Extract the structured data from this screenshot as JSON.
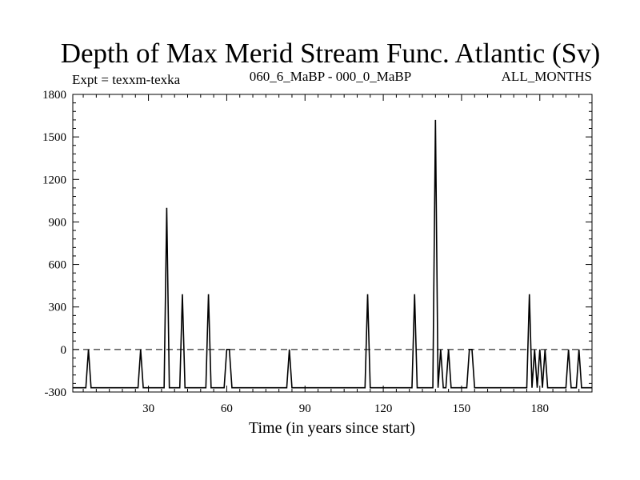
{
  "chart_data": {
    "type": "line",
    "title": "Depth of Max Merid Stream Func. Atlantic (Sv)",
    "subtitle_left": "Expt = texxm-texka",
    "subtitle_center": "060_6_MaBP - 000_0_MaBP",
    "subtitle_right": "ALL_MONTHS",
    "xlabel": "Time (in years since start)",
    "ylabel": "",
    "xlim": [
      1,
      200
    ],
    "ylim": [
      -300,
      1800
    ],
    "xticks": [
      30,
      60,
      90,
      120,
      150,
      180
    ],
    "yticks": [
      -300,
      0,
      300,
      600,
      900,
      1200,
      1500,
      1800
    ],
    "reference_line": 0,
    "series": [
      {
        "name": "texxm-texka",
        "x": [
          1,
          6,
          7,
          8,
          26,
          27,
          28,
          36,
          37,
          38,
          42,
          43,
          44,
          52,
          53,
          54,
          59,
          60,
          61,
          62,
          83,
          84,
          85,
          113,
          114,
          115,
          131,
          132,
          133,
          139,
          140,
          141,
          142,
          143,
          144,
          145,
          146,
          147,
          152,
          153,
          154,
          155,
          175,
          176,
          177,
          178,
          179,
          180,
          181,
          182,
          183,
          184,
          190,
          191,
          192,
          194,
          195,
          196,
          200
        ],
        "y": [
          -270,
          -270,
          0,
          -270,
          -270,
          0,
          -270,
          -270,
          1000,
          -270,
          -270,
          390,
          -270,
          -270,
          390,
          -270,
          -270,
          0,
          0,
          -270,
          -270,
          0,
          -270,
          -270,
          390,
          -270,
          -270,
          390,
          -270,
          -270,
          1620,
          -270,
          0,
          -270,
          -270,
          0,
          -270,
          -270,
          -270,
          0,
          0,
          -270,
          -270,
          390,
          -270,
          0,
          -270,
          0,
          -270,
          0,
          -270,
          -270,
          -270,
          0,
          -270,
          -270,
          0,
          -270,
          -270
        ]
      }
    ]
  }
}
